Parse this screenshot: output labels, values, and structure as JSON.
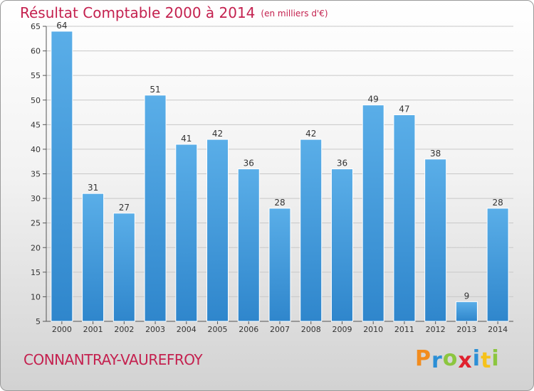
{
  "title": "Résultat Comptable 2000 à 2014",
  "unit": "(en milliers d'€)",
  "commune": "CONNANTRAY-VAUREFROY",
  "brand": {
    "letters": [
      "P",
      "r",
      "o",
      "x",
      "i",
      "t",
      "i"
    ],
    "colors": [
      "#f28c1e",
      "#2b8fd6",
      "#8cc63f",
      "#e0212e",
      "#2b8fd6",
      "#f6c21a",
      "#8cc63f"
    ]
  },
  "colors": {
    "bar": "#2f86cc",
    "bar_light": "#5aaee8",
    "accent": "#c4214f",
    "grid": "#c8c8c8"
  },
  "chart_data": {
    "type": "bar",
    "title": "Résultat Comptable 2000 à 2014",
    "categories": [
      "2000",
      "2001",
      "2002",
      "2003",
      "2004",
      "2005",
      "2006",
      "2007",
      "2008",
      "2009",
      "2010",
      "2011",
      "2012",
      "2013",
      "2014"
    ],
    "values": [
      64,
      31,
      27,
      51,
      41,
      42,
      36,
      28,
      42,
      36,
      49,
      47,
      38,
      9,
      28
    ],
    "ylim": [
      5,
      65
    ],
    "yticks": [
      5,
      10,
      15,
      20,
      25,
      30,
      35,
      40,
      45,
      50,
      55,
      60,
      65
    ],
    "grid": true,
    "data_labels": true
  }
}
